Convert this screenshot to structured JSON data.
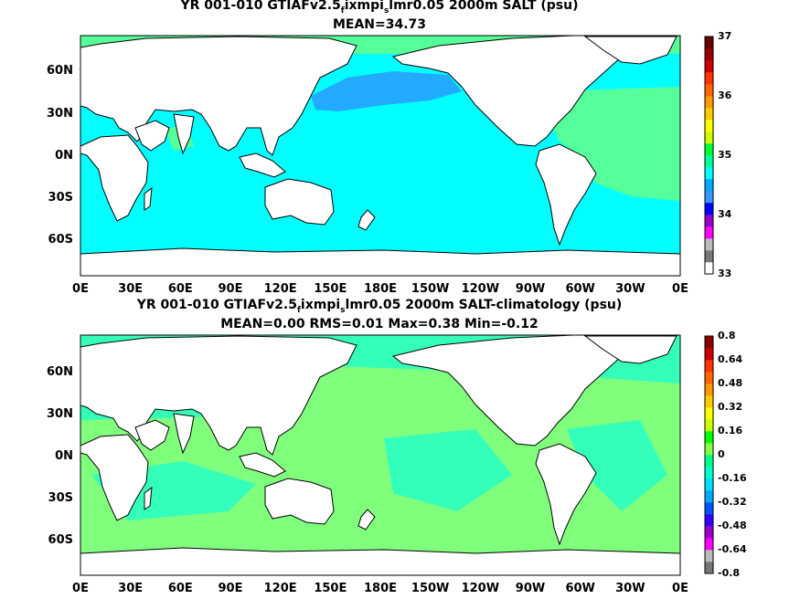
{
  "panels": [
    {
      "title_main": "YR 001-010 GTIAFv2.5",
      "title_sub1": "f",
      "title_mid": "ixmpi",
      "title_sub2": "s",
      "title_end": "lmr0.05 2000m SALT (psu)",
      "stats": "MEAN=34.73",
      "colorbar_ticks": [
        "37",
        "36",
        "35",
        "34",
        "33"
      ],
      "colorbar_colors": [
        "#ffffff",
        "#777777",
        "#bbbbbb",
        "#ff00ff",
        "#9900cc",
        "#0000ff",
        "#3399ff",
        "#00aaff",
        "#00ffff",
        "#00ff99",
        "#00ff33",
        "#ccff00",
        "#ffff00",
        "#ffcc00",
        "#ff9900",
        "#ff6600",
        "#ff3300",
        "#cc0000",
        "#990000",
        "#660000"
      ]
    },
    {
      "title_main": "YR 001-010 GTIAFv2.5",
      "title_sub1": "f",
      "title_mid": "ixmpi",
      "title_sub2": "s",
      "title_end": "lmr0.05 2000m SALT-climatology (psu)",
      "stats": "MEAN=0.00   RMS=0.01   Max=0.38   Min=-0.12",
      "colorbar_ticks": [
        "0.8",
        "0.64",
        "0.48",
        "0.32",
        "0.16",
        "0",
        "-0.16",
        "-0.32",
        "-0.48",
        "-0.64",
        "-0.8"
      ],
      "colorbar_colors": [
        "#777777",
        "#bbbbbb",
        "#ff00ff",
        "#9900cc",
        "#3300ff",
        "#0055ff",
        "#00aaff",
        "#00ddff",
        "#00ffcc",
        "#00ff88",
        "#88ff44",
        "#00ff00",
        "#ccff00",
        "#ffff00",
        "#ffcc00",
        "#ff9900",
        "#ff6600",
        "#ff3300",
        "#cc0000",
        "#880000"
      ]
    }
  ],
  "axes": {
    "x_ticks": [
      "0E",
      "30E",
      "60E",
      "90E",
      "120E",
      "150E",
      "180E",
      "150W",
      "120W",
      "90W",
      "60W",
      "30W",
      "0E"
    ],
    "y_ticks": [
      "60N",
      "30N",
      "0N",
      "30S",
      "60S"
    ]
  },
  "colors": {
    "panel1_ocean": "#00ffff",
    "panel1_npacific": "#22aaff",
    "panel1_atlantic": "#55ff99",
    "panel2_ocean": "#88ff77",
    "panel2_patch": "#33ffbb",
    "land": "#ffffff"
  }
}
